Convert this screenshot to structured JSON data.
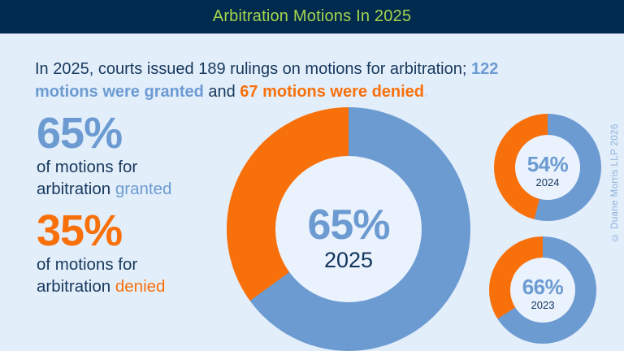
{
  "header": {
    "title": "Arbitration Motions In 2025"
  },
  "intro": {
    "line1_dark": "In 2025, courts issued 189 rulings on motions for arbitration; ",
    "line1_blue": "122",
    "line2_blue": "motions were granted",
    "line2_dark": " and ",
    "line2_orange": "67 motions were denied",
    "period": "."
  },
  "stats": {
    "granted": {
      "pct": "65%",
      "line1": "of motions for",
      "line2": "arbitration",
      "keyword": "granted"
    },
    "denied": {
      "pct": "35%",
      "line1": "of motions for",
      "line2": "arbitration",
      "keyword": "denied"
    }
  },
  "chart_data": [
    {
      "type": "pie",
      "subtype": "donut",
      "title": "Arbitration motions outcome 2025",
      "year_label": "2025",
      "center_label": "65%",
      "labels": [
        "granted",
        "denied"
      ],
      "values": [
        65,
        35
      ],
      "counts": {
        "total_rulings": 189,
        "granted": 122,
        "denied": 67
      },
      "colors": [
        "#6c9bd2",
        "#f8700a"
      ],
      "start_angle_deg": 0,
      "direction": "clockwise"
    },
    {
      "type": "pie",
      "subtype": "donut",
      "title": "Arbitration motions outcome 2024",
      "year_label": "2024",
      "center_label": "54%",
      "labels": [
        "granted",
        "denied"
      ],
      "values": [
        54,
        46
      ],
      "colors": [
        "#6c9bd2",
        "#f8700a"
      ],
      "start_angle_deg": 0,
      "direction": "clockwise"
    },
    {
      "type": "pie",
      "subtype": "donut",
      "title": "Arbitration motions outcome 2023",
      "year_label": "2023",
      "center_label": "66%",
      "labels": [
        "granted",
        "denied"
      ],
      "values": [
        66,
        34
      ],
      "colors": [
        "#6c9bd2",
        "#f8700a"
      ],
      "start_angle_deg": 0,
      "direction": "clockwise"
    }
  ],
  "copyright": "© Duane Morris LLP 2026",
  "colors": {
    "header_bg": "#002b4e",
    "title_green": "#a6d44e",
    "background": "#e3eefb",
    "granted_blue": "#6c9bd2",
    "denied_orange": "#f8700a",
    "dark_text": "#17395c",
    "donut_hole": "#e9f2fd",
    "copyright_text": "#8cb2da"
  }
}
